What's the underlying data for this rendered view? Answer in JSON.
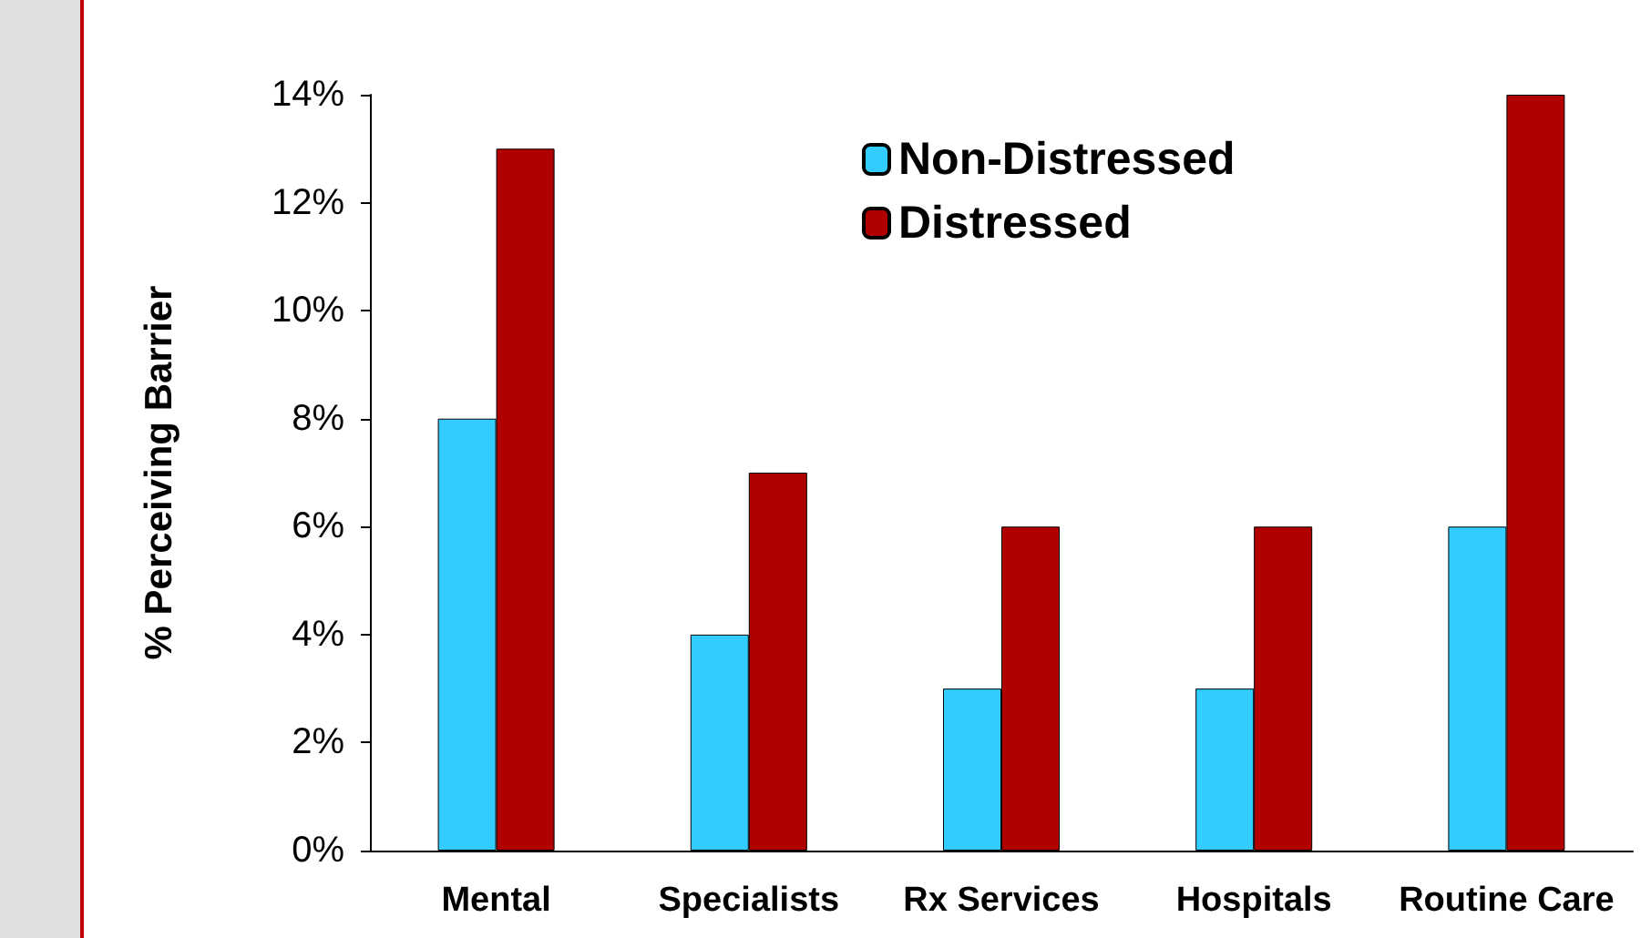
{
  "chart_data": {
    "type": "bar",
    "ylabel": "% Perceiving Barrier",
    "categories": [
      "Mental",
      "Specialists",
      "Rx Services",
      "Hospitals",
      "Routine Care"
    ],
    "series": [
      {
        "name": "Non-Distressed",
        "color": "#33ccff",
        "values": [
          8,
          4,
          3,
          3,
          6
        ]
      },
      {
        "name": "Distressed",
        "color": "#b00000",
        "values": [
          13,
          7,
          6,
          6,
          14
        ]
      }
    ],
    "ylim": [
      0,
      14
    ],
    "yticks": [
      {
        "value": 0,
        "label": "0%"
      },
      {
        "value": 2,
        "label": "2%"
      },
      {
        "value": 4,
        "label": "4%"
      },
      {
        "value": 6,
        "label": "6%"
      },
      {
        "value": 8,
        "label": "8%"
      },
      {
        "value": 10,
        "label": "10%"
      },
      {
        "value": 12,
        "label": "12%"
      },
      {
        "value": 14,
        "label": "14%"
      }
    ],
    "grid": false,
    "legend": "top"
  }
}
